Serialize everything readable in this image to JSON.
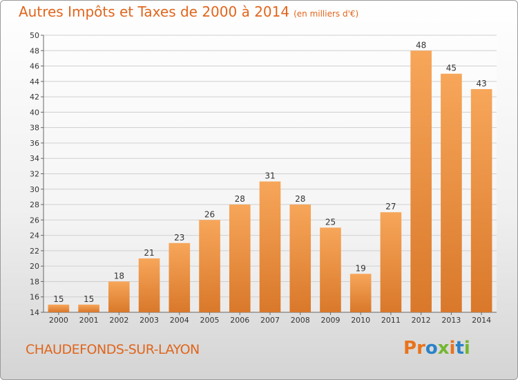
{
  "title": "Autres Impôts et Taxes de 2000 à 2014",
  "unit": "(en milliers d'€)",
  "commune": "CHAUDEFONDS-SUR-LAYON",
  "logo": "Proxiti",
  "logo_colors": [
    "#e8731c",
    "#e8731c",
    "#2a82c8",
    "#74b630",
    "#e8731c",
    "#2a82c8",
    "#74b630"
  ],
  "colors": {
    "bar_light": "#f7a65a",
    "bar_dark": "#d9782a",
    "title": "#e0651c"
  },
  "chart_data": {
    "type": "bar",
    "categories": [
      "2000",
      "2001",
      "2002",
      "2003",
      "2004",
      "2005",
      "2006",
      "2007",
      "2008",
      "2009",
      "2010",
      "2011",
      "2012",
      "2013",
      "2014"
    ],
    "values": [
      15,
      15,
      18,
      21,
      23,
      26,
      28,
      31,
      28,
      25,
      19,
      27,
      48,
      45,
      43
    ],
    "ylim": [
      14,
      50
    ],
    "yticks": [
      14,
      16,
      18,
      20,
      22,
      24,
      26,
      28,
      30,
      32,
      34,
      36,
      38,
      40,
      42,
      44,
      46,
      48,
      50
    ],
    "grid": true
  }
}
